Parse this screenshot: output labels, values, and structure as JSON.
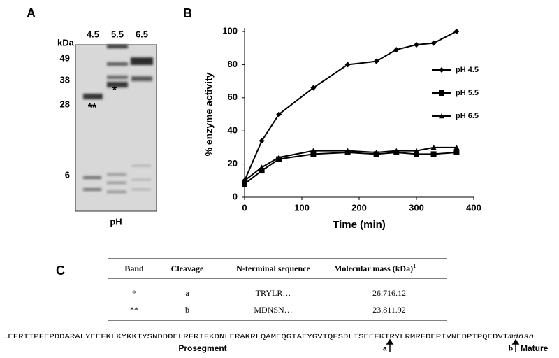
{
  "panel_a": {
    "label": "A",
    "unit": "kDa",
    "lanes": [
      "4.5",
      "5.5",
      "6.5"
    ],
    "markers": [
      "49",
      "38",
      "28",
      "6"
    ],
    "stars": [
      "**",
      "*"
    ],
    "xlabel": "pH"
  },
  "panel_b": {
    "label": "B"
  },
  "chart_data": {
    "type": "line",
    "xlabel": "Time (min)",
    "ylabel": "% enzyme activity",
    "x": [
      0,
      30,
      60,
      120,
      180,
      230,
      265,
      300,
      330,
      370
    ],
    "series": [
      {
        "name": "pH 4.5",
        "color": "#000000",
        "marker": "diamond",
        "values": [
          10,
          34,
          50,
          66,
          80,
          82,
          89,
          92,
          93,
          100
        ]
      },
      {
        "name": "pH 5.5",
        "color": "#000000",
        "marker": "square",
        "values": [
          8,
          16,
          23,
          26,
          27,
          26,
          27,
          26,
          26,
          27
        ]
      },
      {
        "name": "pH 6.5",
        "color": "#000000",
        "marker": "triangle",
        "values": [
          10,
          18,
          24,
          28,
          28,
          27,
          28,
          28,
          30,
          30
        ]
      }
    ],
    "xlim": [
      0,
      400
    ],
    "xticks": [
      0,
      100,
      200,
      300,
      400
    ],
    "ylim": [
      0,
      100
    ],
    "yticks": [
      0,
      20,
      40,
      60,
      80,
      100
    ]
  },
  "panel_c": {
    "label": "C",
    "table": {
      "header": [
        "Band",
        "Cleavage",
        "N-terminal sequence",
        "Molecular mass (kDa)"
      ],
      "header_sup": "1",
      "rows": [
        [
          "*",
          "a",
          "TRYLR…",
          "26.716.12"
        ],
        [
          "**",
          "b",
          "MDNSN…",
          "23.811.92"
        ]
      ]
    },
    "sequence": "…EFRTTPFEPDDARALYEEFKLKYKKTYSNDDDELRFRIFKDNLERAKRLQAMEQGTAEYGVTQFSDLTSEEFKTRYLRMRFDEPIVNEDPTPQEDVT",
    "sequence_mature": "mdnsn",
    "prosegment": "Prosegment",
    "site_a": "a",
    "site_b": "b",
    "mature": "Mature"
  }
}
